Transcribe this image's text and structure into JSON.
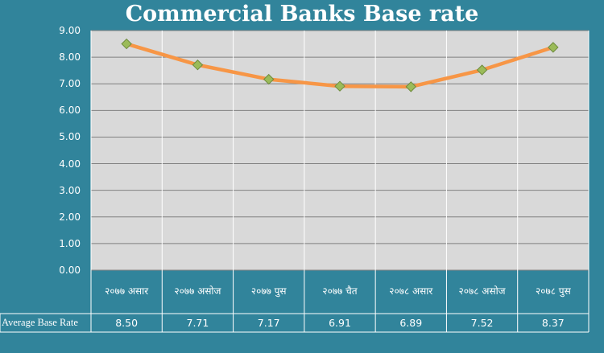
{
  "chart_data": {
    "type": "line",
    "title": "Commercial Banks Base rate",
    "categories": [
      "२०७७ असार",
      "२०७७ असोज",
      "२०७७ पुस",
      "२०७७ चैत",
      "२०७८ असार",
      "२०७८ असोज",
      "२०७८ पुस"
    ],
    "series": [
      {
        "name": "Average Base Rate",
        "values": [
          8.5,
          7.71,
          7.17,
          6.91,
          6.89,
          7.52,
          8.37
        ]
      }
    ],
    "value_labels": [
      "8.50",
      "7.71",
      "7.17",
      "6.91",
      "6.89",
      "7.52",
      "8.37"
    ],
    "ylim": [
      0,
      9
    ],
    "yticks": [
      "0.00",
      "1.00",
      "2.00",
      "3.00",
      "4.00",
      "5.00",
      "6.00",
      "7.00",
      "8.00",
      "9.00"
    ],
    "grid": true,
    "legend": "data table below chart",
    "colors": {
      "background": "#31849B",
      "plot_area": "#D9D9D9",
      "line": "#F79646",
      "marker": "#9BBB59",
      "text": "#FFFFFF",
      "grid": "#808080"
    }
  }
}
